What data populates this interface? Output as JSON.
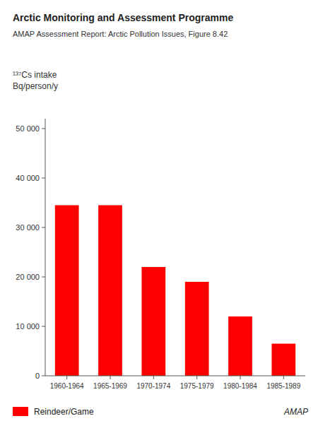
{
  "chart_data": {
    "type": "bar",
    "title": "Arctic Monitoring and Assessment Programme",
    "subtitle": "AMAP Assessment Report: Arctic Pollution Issues, Figure 8.42",
    "ylabel": [
      "¹³⁷Cs intake",
      "Bq/person/y"
    ],
    "categories": [
      "1960-1964",
      "1965-1969",
      "1970-1974",
      "1975-1979",
      "1980-1984",
      "1985-1989"
    ],
    "series": [
      {
        "name": "Reindeer/Game",
        "color": "#ff0000",
        "values": [
          34500,
          34500,
          22000,
          19000,
          12000,
          6500
        ]
      }
    ],
    "ylim": [
      0,
      52000
    ],
    "yticks": [
      0,
      {
        "value": 10000,
        "label": "10 000"
      },
      {
        "value": 20000,
        "label": "20 000"
      },
      {
        "value": 30000,
        "label": "30 000"
      },
      {
        "value": 40000,
        "label": "40 000"
      },
      {
        "value": 50000,
        "label": "50 000"
      }
    ],
    "grid": false,
    "legend": "lower left",
    "annotations": [
      "AMAP"
    ]
  }
}
